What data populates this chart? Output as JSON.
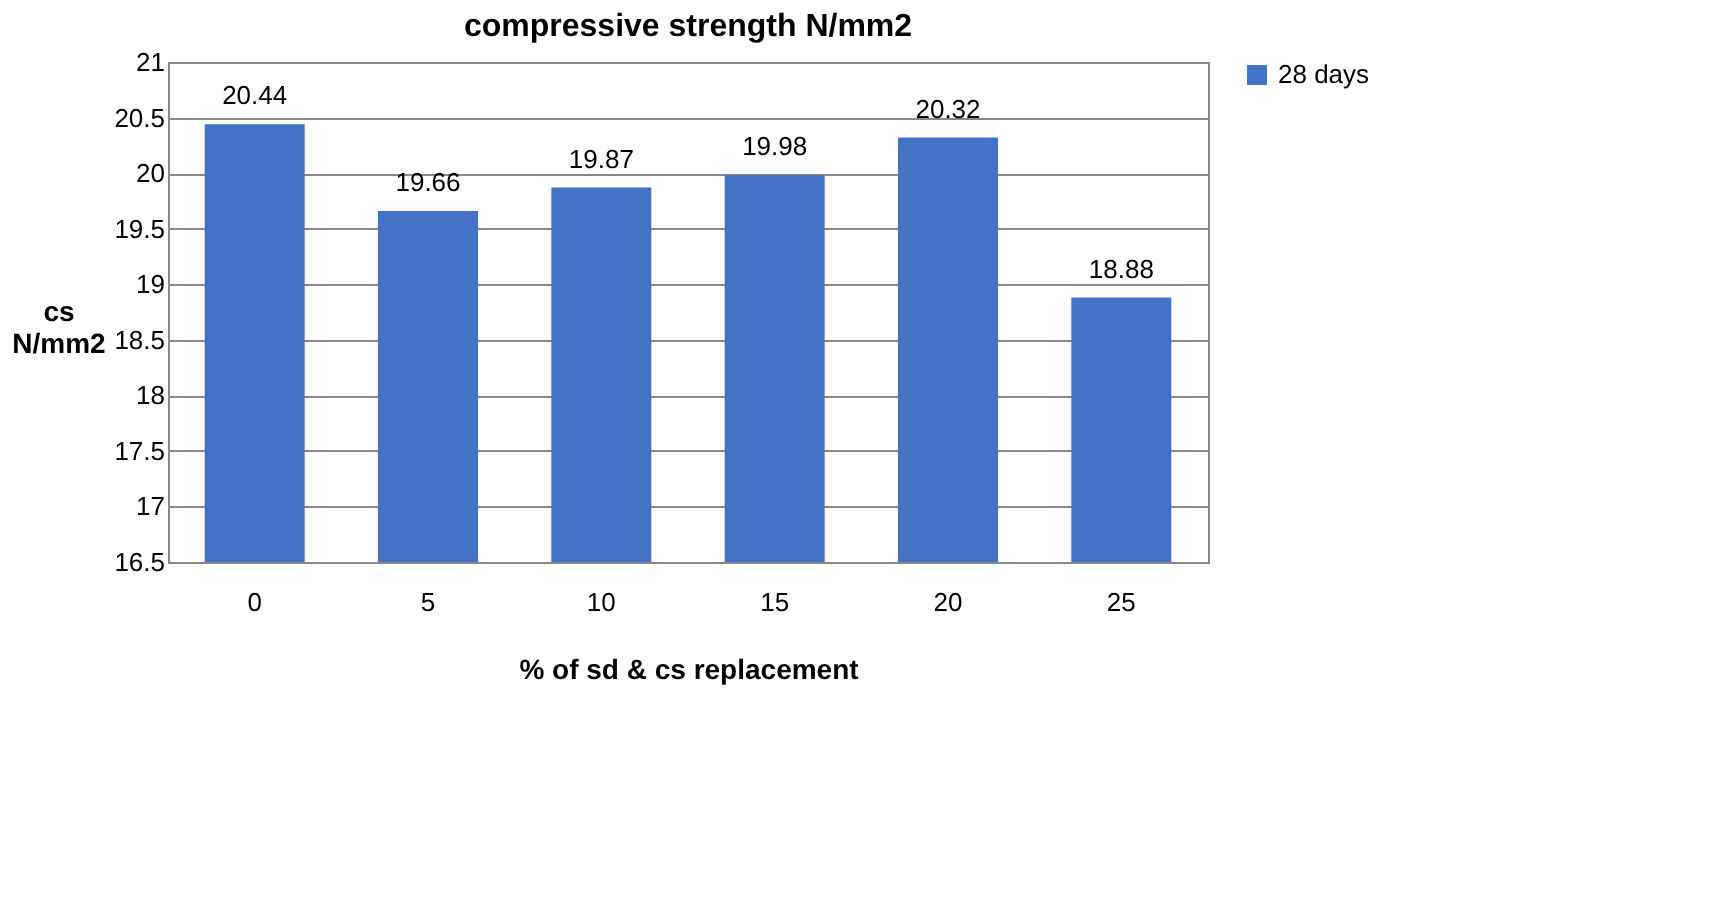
{
  "chart_data": {
    "type": "bar",
    "title": "compressive strength N/mm2",
    "xlabel": "% of sd & cs replacement",
    "ylabel": "cs N/mm2",
    "categories": [
      "0",
      "5",
      "10",
      "15",
      "20",
      "25"
    ],
    "series": [
      {
        "name": "28 days",
        "color": "#4472c4",
        "values": [
          20.44,
          19.66,
          19.87,
          19.98,
          20.32,
          18.88
        ]
      }
    ],
    "data_labels": true,
    "ylim": [
      16.5,
      21
    ],
    "yticks": [
      16.5,
      17,
      17.5,
      18,
      18.5,
      19,
      19.5,
      20,
      20.5,
      21
    ],
    "grid": "y",
    "legend": "right"
  }
}
